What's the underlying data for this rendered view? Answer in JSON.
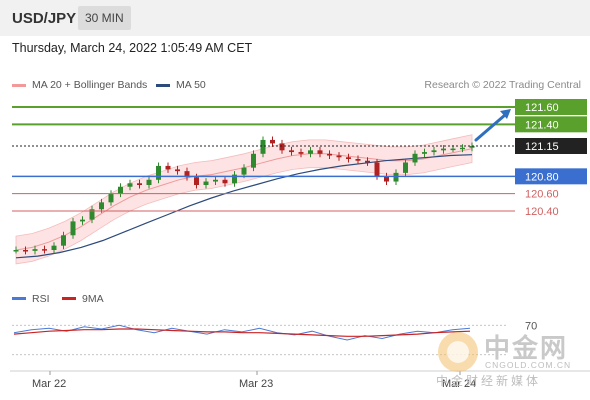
{
  "header": {
    "pair": "USD/JPY",
    "timeframe": "30 MIN"
  },
  "datetime": "Thursday, March 24, 2022 1:05:49 AM CET",
  "legend": {
    "bb": {
      "label": "MA 20 + Bollinger Bands",
      "color": "#f09a9a"
    },
    "ma50": {
      "label": "MA 50",
      "color": "#2c4a7c"
    }
  },
  "research": "Research © 2022 Trading Central",
  "rsi_legend": {
    "rsi": {
      "label": "RSI",
      "color": "#4a7ad6"
    },
    "ma": {
      "label": "9MA",
      "color": "#cc2222"
    }
  },
  "watermark": {
    "cn": "中金网",
    "url": "CNGOLD.COM.CN",
    "sub": "中金财经新媒体"
  },
  "colors": {
    "resistance": "#5aa02c",
    "support": "#3a6fd0",
    "support2": "#d06060",
    "current": "#222222",
    "up_candle": "#2f8a2f",
    "down_candle": "#b02222",
    "arrow": "#2e6fbf"
  },
  "chart_data": {
    "type": "line",
    "title": "USD/JPY",
    "x_labels": [
      "Mar 22",
      "Mar 23",
      "Mar 24"
    ],
    "price": [
      119.95,
      119.94,
      119.96,
      119.95,
      120.0,
      120.12,
      120.28,
      120.3,
      120.42,
      120.5,
      120.6,
      120.68,
      120.72,
      120.7,
      120.76,
      120.92,
      120.88,
      120.86,
      120.79,
      120.7,
      120.74,
      120.76,
      120.72,
      120.82,
      120.9,
      121.06,
      121.22,
      121.18,
      121.1,
      121.08,
      121.06,
      121.1,
      121.06,
      121.04,
      121.02,
      121.0,
      120.98,
      120.96,
      120.8,
      120.74,
      120.84,
      120.96,
      121.06,
      121.08,
      121.1,
      121.12,
      121.12,
      121.13,
      121.15
    ],
    "levels": [
      {
        "label": "121.60",
        "value": 121.6,
        "kind": "resistance"
      },
      {
        "label": "121.40",
        "value": 121.4,
        "kind": "resistance"
      },
      {
        "label": "121.15",
        "value": 121.15,
        "kind": "current"
      },
      {
        "label": "120.80",
        "value": 120.8,
        "kind": "support"
      },
      {
        "label": "120.60",
        "value": 120.6,
        "kind": "support2"
      },
      {
        "label": "120.40",
        "value": 120.4,
        "kind": "support2"
      }
    ],
    "ma20": [
      119.95,
      119.98,
      120.04,
      120.12,
      120.22,
      120.34,
      120.46,
      120.56,
      120.64,
      120.7,
      120.76,
      120.8,
      120.82,
      120.86,
      120.9,
      120.95,
      121.0,
      121.04,
      121.06,
      121.06,
      121.04,
      121.02,
      121.0,
      120.98,
      120.98,
      121.0,
      121.04,
      121.08,
      121.12
    ],
    "ma50": [
      119.86,
      119.88,
      119.92,
      119.98,
      120.06,
      120.16,
      120.26,
      120.36,
      120.46,
      120.55,
      120.63,
      120.7,
      120.77,
      120.83,
      120.88,
      120.92,
      120.95,
      120.98,
      121.0,
      121.02,
      121.04,
      121.05
    ],
    "rsi": [
      60,
      64,
      66,
      62,
      68,
      65,
      70,
      64,
      60,
      66,
      62,
      58,
      64,
      61,
      66,
      60,
      57,
      62,
      55,
      50,
      56,
      52,
      58,
      62,
      60,
      64,
      66
    ],
    "rsi_ma": [
      58,
      60,
      62,
      63,
      64,
      64,
      65,
      65,
      64,
      63,
      62,
      61,
      61,
      60,
      60,
      59,
      58,
      57,
      56,
      55,
      55,
      56,
      57,
      58,
      60,
      61,
      62
    ],
    "rsi_level_label": "70",
    "rsi_levels": [
      70,
      30
    ]
  }
}
